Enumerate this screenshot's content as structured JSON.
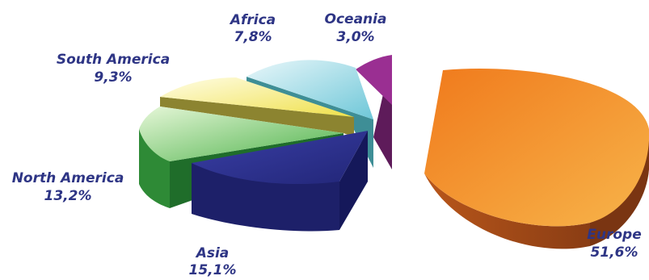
{
  "chart_data": {
    "type": "pie",
    "style": "3d-exploded",
    "slices": [
      {
        "label": "Europe",
        "value_text": "51,6%",
        "value": 51.6,
        "color": "#f39a2e"
      },
      {
        "label": "Asia",
        "value_text": "15,1%",
        "value": 15.1,
        "color": "#2b2f8c"
      },
      {
        "label": "North America",
        "value_text": "13,2%",
        "value": 13.2,
        "color": "#66c25a"
      },
      {
        "label": "South America",
        "value_text": "9,3%",
        "value": 9.3,
        "color": "#f3ec73"
      },
      {
        "label": "Africa",
        "value_text": "7,8%",
        "value": 7.8,
        "color": "#8fd5e2"
      },
      {
        "label": "Oceania",
        "value_text": "3,0%",
        "value": 3.0,
        "color": "#8d2c86"
      }
    ]
  }
}
